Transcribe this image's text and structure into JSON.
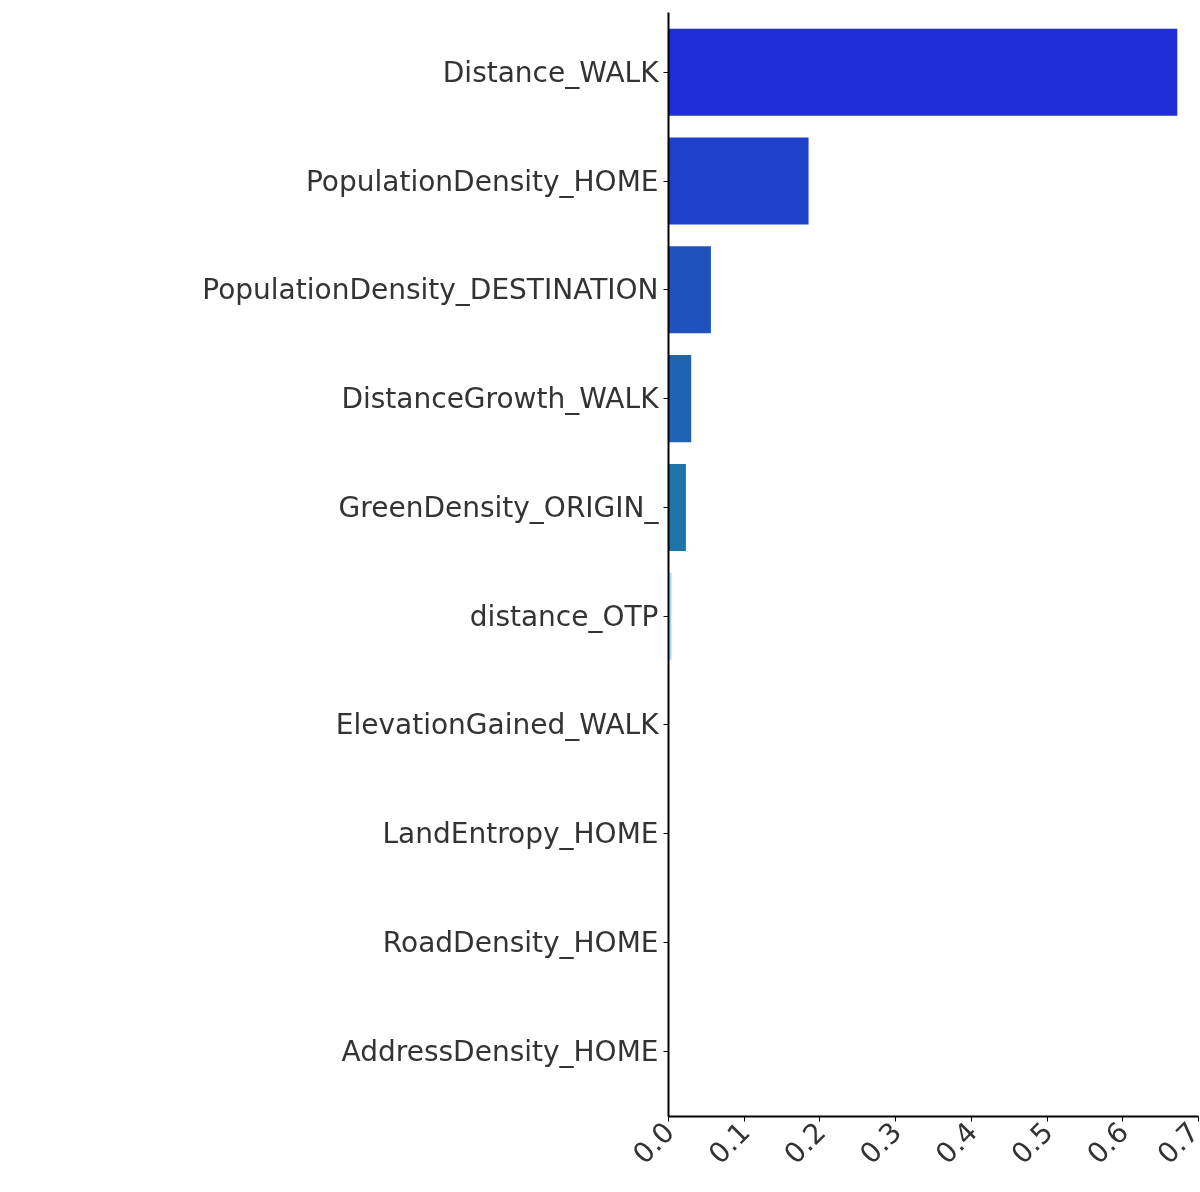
{
  "chart_data": {
    "type": "bar",
    "orientation": "horizontal",
    "categories": [
      "Distance_WALK",
      "PopulationDensity_HOME",
      "PopulationDensity_DESTINATION",
      "DistanceGrowth_WALK",
      "GreenDensity_ORIGIN_",
      "distance_OTP",
      "ElevationGained_WALK",
      "LandEntropy_HOME",
      "RoadDensity_HOME",
      "AddressDensity_HOME"
    ],
    "values": [
      0.672,
      0.185,
      0.056,
      0.03,
      0.023,
      0.004,
      0,
      0,
      0,
      0
    ],
    "colors": [
      "#1f2ed6",
      "#1f40c8",
      "#1f52bd",
      "#1f62b4",
      "#1f74a9",
      "#a0e0f0",
      "#ffffff",
      "#ffffff",
      "#ffffff",
      "#ffffff"
    ],
    "xlim": [
      0,
      0.7
    ],
    "xticks": [
      {
        "value": 0,
        "label": "0.0"
      },
      0.1,
      0.2,
      0.3,
      0.4,
      0.5,
      0.6,
      0.7
    ],
    "grid": false
  }
}
